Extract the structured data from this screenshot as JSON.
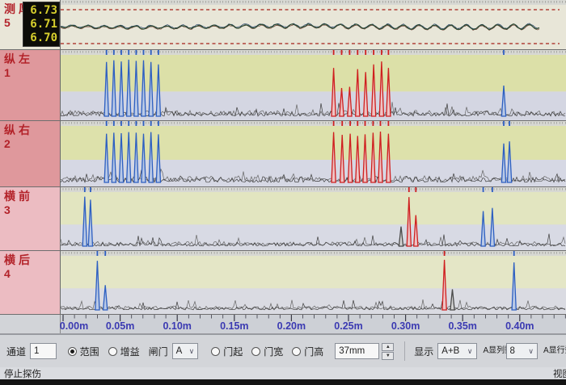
{
  "thickness": {
    "label": "测厚",
    "number": "5",
    "readings": [
      "6.73",
      "6.71",
      "6.70"
    ]
  },
  "axis_ticks": [
    "0.00m",
    "0.05m",
    "0.10m",
    "0.15m",
    "0.20m",
    "0.25m",
    "0.30m",
    "0.35m",
    "0.40m"
  ],
  "toolbar": {
    "channel_label": "通道",
    "channel_value": "1",
    "range_label": "范围",
    "gain_label": "增益",
    "gate_label": "闸门",
    "gate_select_value": "A",
    "gate_start_label": "门起",
    "gate_width_label": "门宽",
    "gate_height_label": "门高",
    "gate_mm_value": "37mm",
    "display_label": "显示",
    "display_value": "A+B",
    "a_cols_label": "A显列数",
    "a_cols_value": "8",
    "a_rows_label": "A显行数"
  },
  "statusbar": {
    "left": "停止探伤",
    "right": "视图"
  },
  "chart_data": {
    "type": "line",
    "x_unit": "m",
    "x_range": [
      0,
      0.443
    ],
    "x_tick_labels": [
      "0.00m",
      "0.05m",
      "0.10m",
      "0.15m",
      "0.20m",
      "0.25m",
      "0.30m",
      "0.35m",
      "0.40m"
    ],
    "x_tick_step_m": 0.05,
    "grid": false,
    "legend": "none",
    "thickness_channel": {
      "label": "测厚",
      "number": "5",
      "readings_mm": [
        6.73,
        6.71,
        6.7
      ],
      "description": "near-flat oscillating thickness trace between upper and lower red dashed limit lines, trace ends near 0.42m"
    },
    "channels": [
      {
        "label": "纵左",
        "number": "1",
        "spikes": [
          {
            "x": 0.038,
            "amp": 0.92,
            "color": "blue"
          },
          {
            "x": 0.0445,
            "amp": 0.95,
            "color": "blue"
          },
          {
            "x": 0.051,
            "amp": 0.93,
            "color": "blue"
          },
          {
            "x": 0.0575,
            "amp": 0.96,
            "color": "blue"
          },
          {
            "x": 0.064,
            "amp": 0.94,
            "color": "blue"
          },
          {
            "x": 0.0705,
            "amp": 0.95,
            "color": "blue"
          },
          {
            "x": 0.077,
            "amp": 0.92,
            "color": "blue"
          },
          {
            "x": 0.0835,
            "amp": 0.88,
            "color": "blue"
          },
          {
            "x": 0.237,
            "amp": 0.82,
            "color": "red"
          },
          {
            "x": 0.244,
            "amp": 0.48,
            "color": "red"
          },
          {
            "x": 0.251,
            "amp": 0.5,
            "color": "red"
          },
          {
            "x": 0.258,
            "amp": 0.8,
            "color": "red"
          },
          {
            "x": 0.265,
            "amp": 0.75,
            "color": "red"
          },
          {
            "x": 0.272,
            "amp": 0.88,
            "color": "red"
          },
          {
            "x": 0.279,
            "amp": 0.93,
            "color": "red"
          },
          {
            "x": 0.285,
            "amp": 0.82,
            "color": "red"
          },
          {
            "x": 0.386,
            "amp": 0.52,
            "color": "blue"
          }
        ]
      },
      {
        "label": "纵右",
        "number": "2",
        "spikes": [
          {
            "x": 0.038,
            "amp": 0.9,
            "color": "blue"
          },
          {
            "x": 0.0445,
            "amp": 0.92,
            "color": "blue"
          },
          {
            "x": 0.051,
            "amp": 0.91,
            "color": "blue"
          },
          {
            "x": 0.0575,
            "amp": 0.93,
            "color": "blue"
          },
          {
            "x": 0.064,
            "amp": 0.92,
            "color": "blue"
          },
          {
            "x": 0.0705,
            "amp": 0.9,
            "color": "blue"
          },
          {
            "x": 0.077,
            "amp": 0.93,
            "color": "blue"
          },
          {
            "x": 0.0835,
            "amp": 0.89,
            "color": "blue"
          },
          {
            "x": 0.237,
            "amp": 0.93,
            "color": "red"
          },
          {
            "x": 0.2445,
            "amp": 0.88,
            "color": "red"
          },
          {
            "x": 0.2515,
            "amp": 0.9,
            "color": "red"
          },
          {
            "x": 0.258,
            "amp": 0.86,
            "color": "red"
          },
          {
            "x": 0.2645,
            "amp": 0.89,
            "color": "red"
          },
          {
            "x": 0.2715,
            "amp": 0.92,
            "color": "red"
          },
          {
            "x": 0.278,
            "amp": 0.94,
            "color": "red"
          },
          {
            "x": 0.285,
            "amp": 0.9,
            "color": "red"
          },
          {
            "x": 0.386,
            "amp": 0.72,
            "color": "blue"
          },
          {
            "x": 0.391,
            "amp": 0.76,
            "color": "blue"
          }
        ]
      },
      {
        "label": "横前",
        "number": "3",
        "spikes": [
          {
            "x": 0.019,
            "amp": 0.96,
            "color": "blue"
          },
          {
            "x": 0.024,
            "amp": 0.9,
            "color": "blue"
          },
          {
            "x": 0.296,
            "amp": 0.38,
            "color": "gray"
          },
          {
            "x": 0.303,
            "amp": 0.95,
            "color": "red"
          },
          {
            "x": 0.309,
            "amp": 0.6,
            "color": "red"
          },
          {
            "x": 0.368,
            "amp": 0.68,
            "color": "blue"
          },
          {
            "x": 0.376,
            "amp": 0.74,
            "color": "blue"
          }
        ]
      },
      {
        "label": "横后",
        "number": "4",
        "spikes": [
          {
            "x": 0.03,
            "amp": 0.95,
            "color": "blue"
          },
          {
            "x": 0.037,
            "amp": 0.48,
            "color": "blue"
          },
          {
            "x": 0.334,
            "amp": 0.97,
            "color": "red"
          },
          {
            "x": 0.341,
            "amp": 0.4,
            "color": "gray"
          },
          {
            "x": 0.395,
            "amp": 0.92,
            "color": "blue"
          }
        ]
      }
    ],
    "colors": {
      "defect_blue": "#2d5fc1",
      "defect_red": "#cf1f1f",
      "noise_trace": "#3c3c3c",
      "limit_line_red": "#b04038",
      "axis_label_blue": "#3b3ab2",
      "readings_yellow": "#d7cf2d",
      "label_red": "#b3232a"
    }
  }
}
